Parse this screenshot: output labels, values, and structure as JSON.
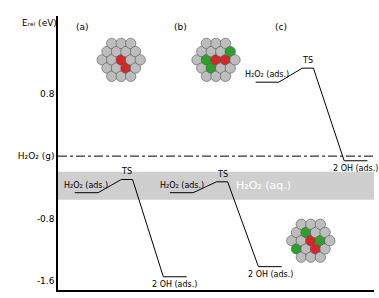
{
  "chart_data": {
    "type": "energy_profile",
    "y_label": "Eᵣₑₗ (eV)",
    "ylim": [
      -1.72,
      1.8
    ],
    "yticks": [
      {
        "value": 0.8,
        "label": "0.8"
      },
      {
        "value": 0,
        "label": "H₂O₂ (g)"
      },
      {
        "value": -0.8,
        "label": "-0.8"
      },
      {
        "value": -1.6,
        "label": "-1.6"
      }
    ],
    "gas_level": 0,
    "aq_band": [
      -0.56,
      -0.2
    ],
    "aq_label": "H₂O₂ (aq.)",
    "color": "#000000",
    "series": [
      {
        "name": "(a)",
        "states": [
          "H₂O₂ (ads.)",
          "TS",
          "2 OH (ads.)"
        ],
        "values": [
          -0.47,
          -0.3,
          -1.55
        ]
      },
      {
        "name": "(b)",
        "states": [
          "H₂O₂ (ads.)",
          "TS",
          "2 OH (ads.)"
        ],
        "values": [
          -0.47,
          -0.33,
          -1.42
        ]
      },
      {
        "name": "(c)",
        "states": [
          "H₂O₂ (ads.)",
          "TS",
          "2 OH (ads.)"
        ],
        "values": [
          0.95,
          1.13,
          -0.06
        ]
      }
    ]
  }
}
